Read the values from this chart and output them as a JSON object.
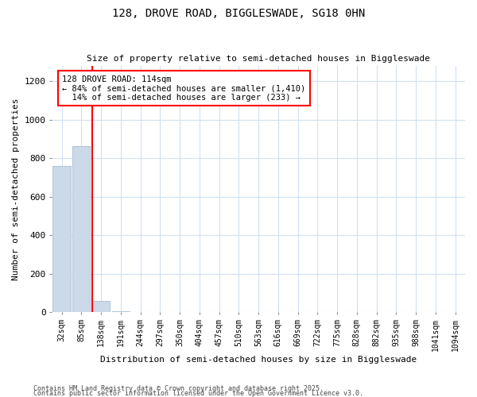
{
  "title1": "128, DROVE ROAD, BIGGLESWADE, SG18 0HN",
  "title2": "Size of property relative to semi-detached houses in Biggleswade",
  "xlabel": "Distribution of semi-detached houses by size in Biggleswade",
  "ylabel": "Number of semi-detached properties",
  "footer1": "Contains HM Land Registry data © Crown copyright and database right 2025.",
  "footer2": "Contains public sector information licensed under the Open Government Licence v3.0.",
  "bin_labels": [
    "32sqm",
    "85sqm",
    "138sqm",
    "191sqm",
    "244sqm",
    "297sqm",
    "350sqm",
    "404sqm",
    "457sqm",
    "510sqm",
    "563sqm",
    "616sqm",
    "669sqm",
    "722sqm",
    "775sqm",
    "828sqm",
    "882sqm",
    "935sqm",
    "988sqm",
    "1041sqm",
    "1094sqm"
  ],
  "bar_values": [
    760,
    860,
    60,
    3,
    2,
    1,
    0,
    0,
    0,
    0,
    0,
    0,
    0,
    0,
    0,
    0,
    0,
    0,
    0,
    0,
    0
  ],
  "bar_color": "#ccd9e8",
  "bar_edge_color": "#b0c4d8",
  "ylim": [
    0,
    1280
  ],
  "yticks": [
    0,
    200,
    400,
    600,
    800,
    1000,
    1200
  ],
  "annotation_text": "128 DROVE ROAD: 114sqm\n← 84% of semi-detached houses are smaller (1,410)\n  14% of semi-detached houses are larger (233) →",
  "background_color": "#ffffff",
  "plot_bg_color": "#ffffff",
  "grid_color": "#d0e0f0"
}
